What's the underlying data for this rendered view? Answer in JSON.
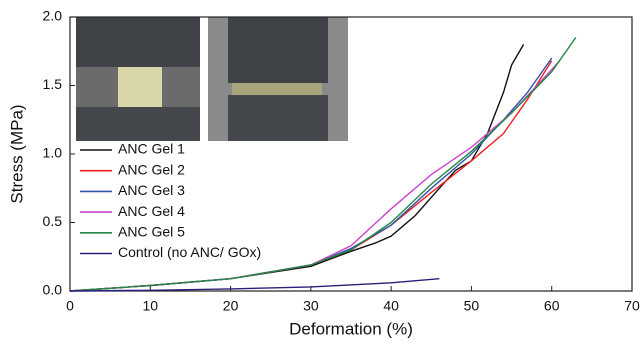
{
  "chart_data": {
    "type": "line",
    "xlabel": "Deformation (%)",
    "ylabel": "Stress (MPa)",
    "xlim": [
      0,
      70
    ],
    "xticks": [
      0,
      10,
      20,
      30,
      40,
      50,
      60,
      70
    ],
    "ylim": [
      0,
      2.0
    ],
    "yticks": [
      {
        "value": 0,
        "label": "0.0"
      },
      {
        "value": 0.5,
        "label": "0.5"
      },
      {
        "value": 1,
        "label": "1.0"
      },
      {
        "value": 1.5,
        "label": "1.5"
      },
      {
        "value": 2,
        "label": "2.0"
      }
    ],
    "legend": "lower left",
    "series": [
      {
        "name": "ANC Gel 1",
        "color": "#111111",
        "x": [
          0,
          10,
          20,
          30,
          35,
          38,
          40,
          43,
          46,
          48,
          50,
          52,
          54,
          55,
          56.5
        ],
        "values": [
          0,
          0.04,
          0.09,
          0.18,
          0.29,
          0.35,
          0.4,
          0.55,
          0.75,
          0.88,
          0.95,
          1.15,
          1.45,
          1.65,
          1.8
        ]
      },
      {
        "name": "ANC Gel 2",
        "color": "#ee2222",
        "x": [
          0,
          10,
          20,
          30,
          35,
          40,
          45,
          50,
          54,
          57,
          60
        ],
        "values": [
          0,
          0.04,
          0.09,
          0.19,
          0.3,
          0.48,
          0.72,
          0.95,
          1.15,
          1.4,
          1.68
        ]
      },
      {
        "name": "ANC Gel 3",
        "color": "#3355aa",
        "x": [
          0,
          10,
          20,
          30,
          35,
          40,
          45,
          50,
          54,
          57,
          60
        ],
        "values": [
          0,
          0.04,
          0.09,
          0.19,
          0.31,
          0.48,
          0.75,
          1.0,
          1.25,
          1.45,
          1.7
        ]
      },
      {
        "name": "ANC Gel 4",
        "color": "#cc44cc",
        "x": [
          0,
          10,
          20,
          30,
          35,
          40,
          45,
          50,
          55,
          61
        ],
        "values": [
          0,
          0.04,
          0.09,
          0.19,
          0.33,
          0.6,
          0.85,
          1.05,
          1.3,
          1.68
        ]
      },
      {
        "name": "ANC Gel 5",
        "color": "#228844",
        "x": [
          0,
          10,
          20,
          30,
          35,
          40,
          45,
          50,
          55,
          60,
          63
        ],
        "values": [
          0,
          0.04,
          0.09,
          0.19,
          0.3,
          0.5,
          0.78,
          1.02,
          1.3,
          1.6,
          1.85
        ]
      },
      {
        "name": "Control (no ANC/ GOx)",
        "color": "#2a1f7a",
        "x": [
          0,
          10,
          20,
          30,
          40,
          46
        ],
        "values": [
          0,
          0.005,
          0.015,
          0.03,
          0.06,
          0.09
        ]
      }
    ]
  }
}
